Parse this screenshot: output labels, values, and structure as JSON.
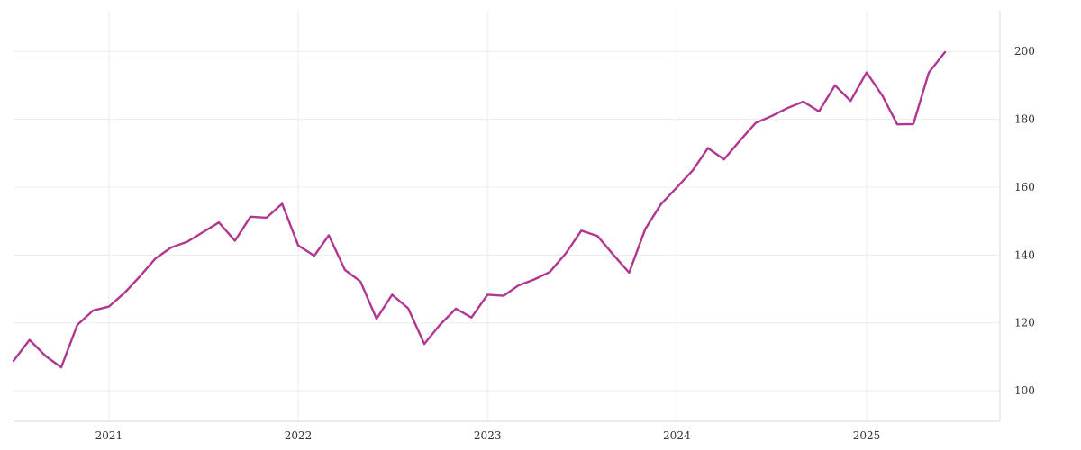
{
  "chart_data": {
    "type": "line",
    "title": "",
    "xlabel": "",
    "ylabel": "",
    "xlim": [
      "2020-07-01",
      "2025-09-15"
    ],
    "ylim": [
      91,
      212
    ],
    "grid": true,
    "y_axis_side": "right",
    "legend": "none",
    "line_color": "#b03791",
    "x_ticks": [
      "2021-01-01",
      "2022-01-01",
      "2023-01-01",
      "2024-01-01",
      "2025-01-01"
    ],
    "x_tick_labels": [
      "2021",
      "2022",
      "2023",
      "2024",
      "2025"
    ],
    "y_ticks": [
      100,
      120,
      140,
      160,
      180,
      200
    ],
    "y_tick_labels": [
      "100",
      "120",
      "140",
      "160",
      "180",
      "200"
    ],
    "series": [
      {
        "x": [
          "2020-07-01",
          "2020-08-01",
          "2020-09-01",
          "2020-10-01",
          "2020-11-01",
          "2020-12-01",
          "2021-01-01",
          "2021-02-01",
          "2021-03-01",
          "2021-04-01",
          "2021-05-01",
          "2021-06-01",
          "2021-07-01",
          "2021-08-01",
          "2021-09-01",
          "2021-10-01",
          "2021-11-01",
          "2021-12-01",
          "2022-01-01",
          "2022-02-01",
          "2022-03-01",
          "2022-04-01",
          "2022-05-01",
          "2022-06-01",
          "2022-07-01",
          "2022-08-01",
          "2022-09-01",
          "2022-10-01",
          "2022-11-01",
          "2022-12-01",
          "2023-01-01",
          "2023-02-01",
          "2023-03-01",
          "2023-04-01",
          "2023-05-01",
          "2023-06-01",
          "2023-07-01",
          "2023-08-01",
          "2023-09-01",
          "2023-10-01",
          "2023-11-01",
          "2023-12-01",
          "2024-01-01",
          "2024-02-01",
          "2024-03-01",
          "2024-04-01",
          "2024-05-01",
          "2024-06-01",
          "2024-07-01",
          "2024-08-01",
          "2024-09-01",
          "2024-10-01",
          "2024-11-01",
          "2024-12-01",
          "2025-01-01",
          "2025-02-01",
          "2025-03-01",
          "2025-04-01",
          "2025-05-01",
          "2025-06-01"
        ],
        "values": [
          108.8,
          115.0,
          110.2,
          106.9,
          119.4,
          123.6,
          124.8,
          129.0,
          133.6,
          139.0,
          142.2,
          143.9,
          146.7,
          149.6,
          144.2,
          151.3,
          151.0,
          155.1,
          142.8,
          139.8,
          145.8,
          135.6,
          132.2,
          121.2,
          128.3,
          124.3,
          113.8,
          119.4,
          124.2,
          121.6,
          128.3,
          128.0,
          131.0,
          132.8,
          135.0,
          140.5,
          147.2,
          145.6,
          140.0,
          134.8,
          147.6,
          154.9,
          159.9,
          165.0,
          171.5,
          168.2,
          173.6,
          178.9,
          180.9,
          183.3,
          185.2,
          182.3,
          190.0,
          185.4,
          193.8,
          186.8,
          178.5,
          178.6,
          193.8,
          199.8
        ]
      }
    ]
  }
}
